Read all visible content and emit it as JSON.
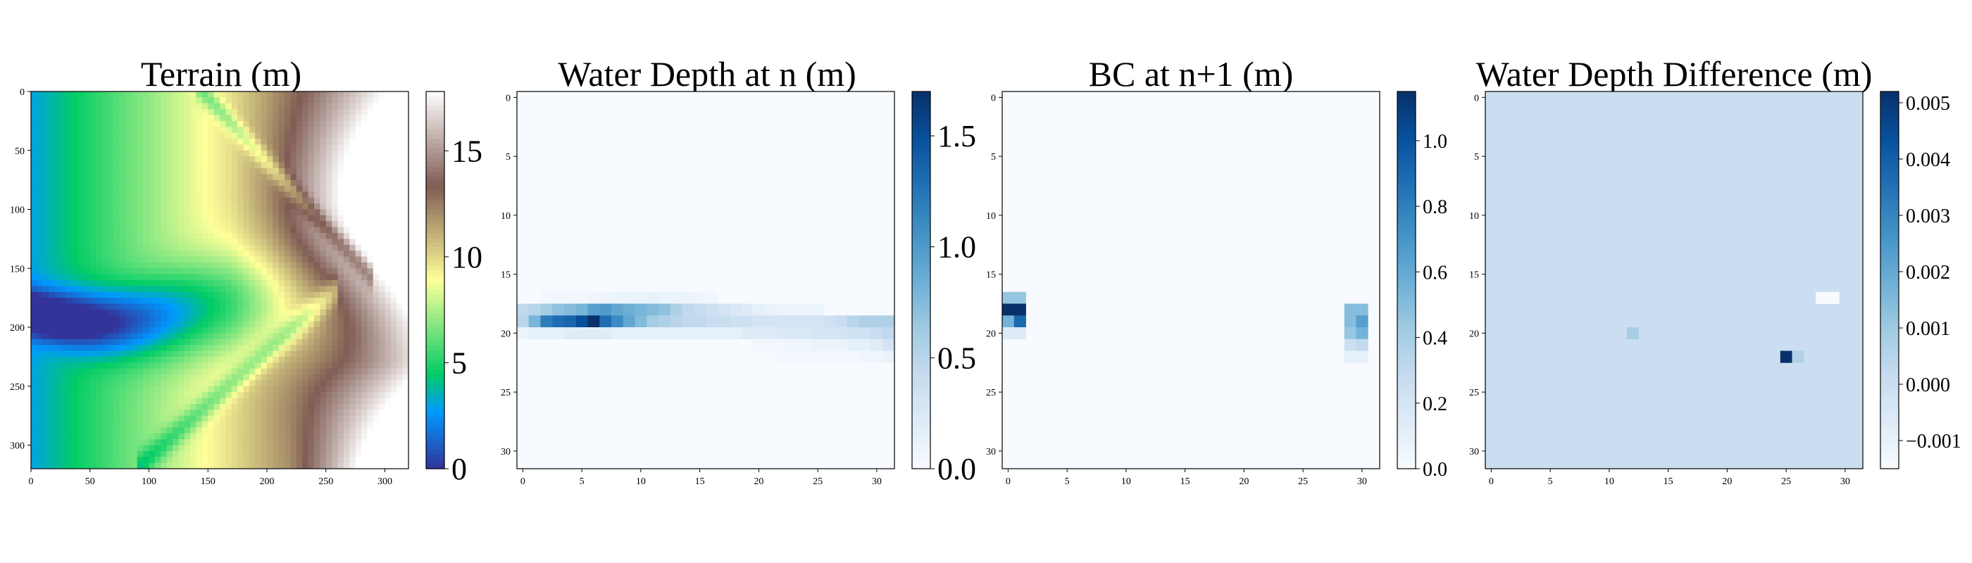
{
  "chart_data": [
    {
      "type": "heatmap",
      "title": "Terrain (m)",
      "grid_size": 320,
      "xlim": [
        0,
        320
      ],
      "ylim": [
        320,
        0
      ],
      "x_ticks": [
        "0",
        "50",
        "100",
        "150",
        "200",
        "250",
        "300"
      ],
      "y_ticks": [
        "0",
        "50",
        "100",
        "150",
        "200",
        "250",
        "300"
      ],
      "colormap": "terrain",
      "colorbar": {
        "min": 0,
        "max": 17.8,
        "ticks": [
          "0",
          "5",
          "10",
          "15"
        ]
      },
      "description_values": {
        "channel_row": 190,
        "channel_min_m": 0,
        "upland_max_m": 17.5
      }
    },
    {
      "type": "heatmap",
      "title": "Water Depth at n (m)",
      "grid_size": 32,
      "x_ticks": [
        "0",
        "5",
        "10",
        "15",
        "20",
        "25",
        "30"
      ],
      "y_ticks": [
        "0",
        "5",
        "10",
        "15",
        "20",
        "25",
        "30"
      ],
      "colormap": "Blues",
      "colorbar": {
        "min": 0,
        "max": 1.7,
        "ticks": [
          "0.0",
          "0.5",
          "1.0",
          "1.5"
        ]
      },
      "cells": [
        [
          17,
          2,
          0.05
        ],
        [
          17,
          3,
          0.05
        ],
        [
          17,
          4,
          0.05
        ],
        [
          17,
          5,
          0.05
        ],
        [
          17,
          6,
          0.08
        ],
        [
          17,
          7,
          0.08
        ],
        [
          17,
          8,
          0.1
        ],
        [
          17,
          9,
          0.1
        ],
        [
          17,
          10,
          0.1
        ],
        [
          17,
          11,
          0.12
        ],
        [
          17,
          12,
          0.1
        ],
        [
          17,
          13,
          0.1
        ],
        [
          17,
          14,
          0.1
        ],
        [
          17,
          15,
          0.08
        ],
        [
          17,
          16,
          0.06
        ],
        [
          18,
          0,
          0.45
        ],
        [
          18,
          1,
          0.5
        ],
        [
          18,
          2,
          0.6
        ],
        [
          18,
          3,
          0.7
        ],
        [
          18,
          4,
          0.75
        ],
        [
          18,
          5,
          0.8
        ],
        [
          18,
          6,
          0.95
        ],
        [
          18,
          7,
          1.0
        ],
        [
          18,
          8,
          0.9
        ],
        [
          18,
          9,
          0.85
        ],
        [
          18,
          10,
          0.8
        ],
        [
          18,
          11,
          0.75
        ],
        [
          18,
          12,
          0.7
        ],
        [
          18,
          13,
          0.55
        ],
        [
          18,
          14,
          0.45
        ],
        [
          18,
          15,
          0.4
        ],
        [
          18,
          16,
          0.35
        ],
        [
          18,
          17,
          0.3
        ],
        [
          18,
          18,
          0.25
        ],
        [
          18,
          19,
          0.2
        ],
        [
          18,
          20,
          0.15
        ],
        [
          18,
          21,
          0.12
        ],
        [
          18,
          22,
          0.1
        ],
        [
          18,
          23,
          0.1
        ],
        [
          18,
          24,
          0.1
        ],
        [
          18,
          25,
          0.1
        ],
        [
          19,
          0,
          0.5
        ],
        [
          19,
          1,
          0.8
        ],
        [
          19,
          2,
          1.2
        ],
        [
          19,
          3,
          1.3
        ],
        [
          19,
          4,
          1.35
        ],
        [
          19,
          5,
          1.5
        ],
        [
          19,
          6,
          1.7
        ],
        [
          19,
          7,
          1.3
        ],
        [
          19,
          8,
          1.1
        ],
        [
          19,
          9,
          0.9
        ],
        [
          19,
          10,
          0.75
        ],
        [
          19,
          11,
          0.6
        ],
        [
          19,
          12,
          0.55
        ],
        [
          19,
          13,
          0.5
        ],
        [
          19,
          14,
          0.45
        ],
        [
          19,
          15,
          0.45
        ],
        [
          19,
          16,
          0.4
        ],
        [
          19,
          17,
          0.4
        ],
        [
          19,
          18,
          0.35
        ],
        [
          19,
          19,
          0.35
        ],
        [
          19,
          20,
          0.3
        ],
        [
          19,
          21,
          0.3
        ],
        [
          19,
          22,
          0.3
        ],
        [
          19,
          23,
          0.3
        ],
        [
          19,
          24,
          0.3
        ],
        [
          19,
          25,
          0.3
        ],
        [
          19,
          26,
          0.35
        ],
        [
          19,
          27,
          0.4
        ],
        [
          19,
          28,
          0.5
        ],
        [
          19,
          29,
          0.55
        ],
        [
          19,
          30,
          0.55
        ],
        [
          19,
          31,
          0.55
        ],
        [
          20,
          0,
          0.1
        ],
        [
          20,
          1,
          0.15
        ],
        [
          20,
          2,
          0.15
        ],
        [
          20,
          3,
          0.15
        ],
        [
          20,
          4,
          0.2
        ],
        [
          20,
          5,
          0.2
        ],
        [
          20,
          6,
          0.2
        ],
        [
          20,
          7,
          0.2
        ],
        [
          20,
          8,
          0.15
        ],
        [
          20,
          9,
          0.15
        ],
        [
          20,
          10,
          0.15
        ],
        [
          20,
          11,
          0.15
        ],
        [
          20,
          12,
          0.15
        ],
        [
          20,
          13,
          0.15
        ],
        [
          20,
          14,
          0.15
        ],
        [
          20,
          15,
          0.15
        ],
        [
          20,
          16,
          0.15
        ],
        [
          20,
          17,
          0.15
        ],
        [
          20,
          18,
          0.15
        ],
        [
          20,
          19,
          0.2
        ],
        [
          20,
          20,
          0.2
        ],
        [
          20,
          21,
          0.2
        ],
        [
          20,
          22,
          0.25
        ],
        [
          20,
          23,
          0.25
        ],
        [
          20,
          24,
          0.25
        ],
        [
          20,
          25,
          0.3
        ],
        [
          20,
          26,
          0.3
        ],
        [
          20,
          27,
          0.3
        ],
        [
          20,
          28,
          0.35
        ],
        [
          20,
          29,
          0.35
        ],
        [
          20,
          30,
          0.4
        ],
        [
          20,
          31,
          0.45
        ],
        [
          21,
          20,
          0.05
        ],
        [
          21,
          21,
          0.05
        ],
        [
          21,
          22,
          0.05
        ],
        [
          21,
          23,
          0.08
        ],
        [
          21,
          24,
          0.08
        ],
        [
          21,
          25,
          0.1
        ],
        [
          21,
          26,
          0.1
        ],
        [
          21,
          27,
          0.1
        ],
        [
          21,
          28,
          0.15
        ],
        [
          21,
          29,
          0.15
        ],
        [
          21,
          30,
          0.2
        ],
        [
          21,
          31,
          0.3
        ],
        [
          22,
          22,
          0.05
        ],
        [
          22,
          23,
          0.05
        ],
        [
          22,
          24,
          0.05
        ],
        [
          22,
          25,
          0.05
        ],
        [
          22,
          26,
          0.05
        ],
        [
          22,
          27,
          0.05
        ],
        [
          22,
          28,
          0.05
        ],
        [
          22,
          29,
          0.08
        ],
        [
          22,
          30,
          0.08
        ],
        [
          22,
          31,
          0.1
        ]
      ]
    },
    {
      "type": "heatmap",
      "title": "BC at n+1 (m)",
      "grid_size": 32,
      "x_ticks": [
        "0",
        "5",
        "10",
        "15",
        "20",
        "25",
        "30"
      ],
      "y_ticks": [
        "0",
        "5",
        "10",
        "15",
        "20",
        "25",
        "30"
      ],
      "colormap": "Blues",
      "colorbar": {
        "min": 0,
        "max": 1.15,
        "ticks": [
          "0.0",
          "0.2",
          "0.4",
          "0.6",
          "0.8",
          "1.0"
        ]
      },
      "cells": [
        [
          17,
          0,
          0.45
        ],
        [
          17,
          1,
          0.45
        ],
        [
          18,
          0,
          1.15
        ],
        [
          18,
          1,
          1.15
        ],
        [
          19,
          0,
          0.55
        ],
        [
          19,
          1,
          0.9
        ],
        [
          20,
          0,
          0.15
        ],
        [
          20,
          1,
          0.15
        ],
        [
          18,
          29,
          0.5
        ],
        [
          18,
          30,
          0.5
        ],
        [
          19,
          29,
          0.5
        ],
        [
          19,
          30,
          0.65
        ],
        [
          20,
          29,
          0.45
        ],
        [
          20,
          30,
          0.55
        ],
        [
          21,
          29,
          0.25
        ],
        [
          21,
          30,
          0.3
        ],
        [
          22,
          29,
          0.1
        ],
        [
          22,
          30,
          0.1
        ]
      ]
    },
    {
      "type": "heatmap",
      "title": "Water Depth Difference (m)",
      "grid_size": 32,
      "x_ticks": [
        "0",
        "5",
        "10",
        "15",
        "20",
        "25",
        "30"
      ],
      "y_ticks": [
        "0",
        "5",
        "10",
        "15",
        "20",
        "25",
        "30"
      ],
      "colormap": "Blues",
      "background_value": 0.0,
      "colorbar": {
        "min": -0.0015,
        "max": 0.0052,
        "ticks": [
          "−0.001",
          "0.000",
          "0.001",
          "0.002",
          "0.003",
          "0.004",
          "0.005"
        ]
      },
      "cells": [
        [
          17,
          28,
          -0.0015
        ],
        [
          17,
          29,
          -0.0015
        ],
        [
          20,
          12,
          0.0008
        ],
        [
          22,
          25,
          0.0052
        ],
        [
          22,
          26,
          0.0006
        ]
      ]
    }
  ]
}
